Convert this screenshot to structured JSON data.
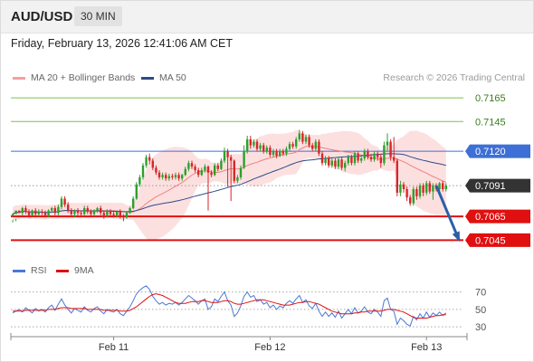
{
  "header": {
    "symbol": "AUD/USD",
    "timeframe": "30 MIN",
    "datetime": "Friday, February 13, 2026 12:41:06 AM CET",
    "copyright": "Research © 2026 Trading Central"
  },
  "legend": {
    "price": [
      {
        "label": "MA 20 + Bollinger Bands",
        "color": "#f4a0a0"
      },
      {
        "label": "MA 50",
        "color": "#2c4a8a"
      }
    ],
    "rsi": [
      {
        "label": "RSI",
        "color": "#4a78d6"
      },
      {
        "label": "9MA",
        "color": "#e01010"
      }
    ]
  },
  "colors": {
    "bull": "#2ca02c",
    "bear": "#d62728",
    "band_fill": "#fbd5d5",
    "ma20": "#f08080",
    "ma50": "#2c4a8a",
    "resistance": "#7cc24e",
    "pivot": "#3d6fd6",
    "support": "#e01010",
    "arrow": "#2a5fa8",
    "current_price_bg": "#333333"
  },
  "chart_data": [
    {
      "type": "candlestick",
      "title": "",
      "ylim": [
        7030,
        7175
      ],
      "x_ticks": [
        {
          "label": "Feb 11",
          "index": 31
        },
        {
          "label": "Feb 12",
          "index": 79
        },
        {
          "label": "Feb 13",
          "index": 127
        }
      ],
      "levels": [
        {
          "value": "0.7165",
          "type": "resistance"
        },
        {
          "value": "0.7145",
          "type": "resistance"
        },
        {
          "value": "0.7120",
          "type": "pivot"
        },
        {
          "value": "0.7091",
          "type": "current"
        },
        {
          "value": "0.7065",
          "type": "support"
        },
        {
          "value": "0.7045",
          "type": "support"
        }
      ],
      "forecast_arrow": {
        "from_index": 130,
        "from": 7091,
        "to_index": 137,
        "to": 7045
      },
      "candles": [
        [
          7065,
          7067,
          7062,
          7060
        ],
        [
          7067,
          7070,
          7063,
          7061
        ],
        [
          7070,
          7068,
          7066,
          7064
        ],
        [
          7068,
          7072,
          7073,
          7066
        ],
        [
          7072,
          7069,
          7074,
          7067
        ],
        [
          7069,
          7066,
          7071,
          7064
        ],
        [
          7066,
          7070,
          7071,
          7065
        ],
        [
          7070,
          7067,
          7072,
          7065
        ],
        [
          7067,
          7069,
          7071,
          7065
        ],
        [
          7069,
          7068,
          7071,
          7066
        ],
        [
          7068,
          7066,
          7070,
          7064
        ],
        [
          7066,
          7070,
          7071,
          7064
        ],
        [
          7070,
          7072,
          7073,
          7068
        ],
        [
          7072,
          7068,
          7074,
          7066
        ],
        [
          7068,
          7073,
          7075,
          7066
        ],
        [
          7073,
          7080,
          7082,
          7071
        ],
        [
          7080,
          7075,
          7082,
          7073
        ],
        [
          7075,
          7070,
          7077,
          7068
        ],
        [
          7070,
          7067,
          7072,
          7065
        ],
        [
          7067,
          7070,
          7071,
          7064
        ],
        [
          7070,
          7068,
          7072,
          7066
        ],
        [
          7068,
          7067,
          7070,
          7065
        ],
        [
          7067,
          7072,
          7074,
          7066
        ],
        [
          7072,
          7069,
          7074,
          7067
        ],
        [
          7069,
          7067,
          7071,
          7065
        ],
        [
          7067,
          7070,
          7071,
          7065
        ],
        [
          7070,
          7072,
          7073,
          7068
        ],
        [
          7072,
          7068,
          7074,
          7066
        ],
        [
          7068,
          7066,
          7070,
          7063
        ],
        [
          7066,
          7069,
          7071,
          7064
        ],
        [
          7069,
          7067,
          7071,
          7065
        ],
        [
          7067,
          7066,
          7069,
          7064
        ],
        [
          7066,
          7069,
          7070,
          7064
        ],
        [
          7069,
          7065,
          7071,
          7063
        ],
        [
          7065,
          7064,
          7067,
          7061
        ],
        [
          7064,
          7068,
          7069,
          7063
        ],
        [
          7068,
          7072,
          7073,
          7067
        ],
        [
          7072,
          7080,
          7082,
          7071
        ],
        [
          7080,
          7092,
          7094,
          7079
        ],
        [
          7092,
          7098,
          7100,
          7090
        ],
        [
          7098,
          7108,
          7110,
          7096
        ],
        [
          7108,
          7115,
          7117,
          7106
        ],
        [
          7115,
          7112,
          7118,
          7109
        ],
        [
          7112,
          7106,
          7114,
          7104
        ],
        [
          7106,
          7102,
          7108,
          7100
        ],
        [
          7102,
          7098,
          7104,
          7096
        ],
        [
          7098,
          7100,
          7102,
          7096
        ],
        [
          7100,
          7097,
          7102,
          7095
        ],
        [
          7097,
          7099,
          7101,
          7095
        ],
        [
          7099,
          7098,
          7101,
          7096
        ],
        [
          7098,
          7100,
          7102,
          7096
        ],
        [
          7100,
          7097,
          7102,
          7095
        ],
        [
          7097,
          7100,
          7101,
          7095
        ],
        [
          7100,
          7105,
          7107,
          7099
        ],
        [
          7105,
          7110,
          7112,
          7103
        ],
        [
          7110,
          7107,
          7112,
          7105
        ],
        [
          7107,
          7104,
          7109,
          7102
        ],
        [
          7104,
          7100,
          7106,
          7098
        ],
        [
          7100,
          7104,
          7106,
          7099
        ],
        [
          7104,
          7107,
          7109,
          7102
        ],
        [
          7107,
          7102,
          7108,
          7070
        ],
        [
          7102,
          7100,
          7104,
          7098
        ],
        [
          7100,
          7108,
          7110,
          7099
        ],
        [
          7108,
          7105,
          7110,
          7103
        ],
        [
          7105,
          7112,
          7114,
          7104
        ],
        [
          7112,
          7120,
          7123,
          7110
        ],
        [
          7120,
          7115,
          7122,
          7090
        ],
        [
          7115,
          7112,
          7117,
          7078
        ],
        [
          7112,
          7095,
          7113,
          7093
        ],
        [
          7095,
          7098,
          7100,
          7093
        ],
        [
          7098,
          7106,
          7108,
          7096
        ],
        [
          7106,
          7120,
          7125,
          7105
        ],
        [
          7120,
          7130,
          7133,
          7118
        ],
        [
          7130,
          7125,
          7133,
          7122
        ],
        [
          7125,
          7128,
          7130,
          7123
        ],
        [
          7128,
          7122,
          7130,
          7120
        ],
        [
          7122,
          7125,
          7127,
          7120
        ],
        [
          7125,
          7120,
          7127,
          7118
        ],
        [
          7120,
          7123,
          7125,
          7118
        ],
        [
          7123,
          7117,
          7125,
          7115
        ],
        [
          7117,
          7120,
          7122,
          7115
        ],
        [
          7120,
          7116,
          7122,
          7114
        ],
        [
          7116,
          7120,
          7122,
          7115
        ],
        [
          7120,
          7118,
          7122,
          7116
        ],
        [
          7118,
          7122,
          7124,
          7116
        ],
        [
          7122,
          7126,
          7128,
          7120
        ],
        [
          7126,
          7124,
          7128,
          7122
        ],
        [
          7124,
          7130,
          7132,
          7122
        ],
        [
          7130,
          7135,
          7138,
          7128
        ],
        [
          7135,
          7128,
          7137,
          7126
        ],
        [
          7128,
          7132,
          7134,
          7126
        ],
        [
          7132,
          7125,
          7134,
          7123
        ],
        [
          7125,
          7122,
          7127,
          7120
        ],
        [
          7122,
          7128,
          7130,
          7120
        ],
        [
          7128,
          7118,
          7130,
          7116
        ],
        [
          7118,
          7110,
          7120,
          7108
        ],
        [
          7110,
          7114,
          7116,
          7108
        ],
        [
          7114,
          7108,
          7116,
          7106
        ],
        [
          7108,
          7112,
          7114,
          7106
        ],
        [
          7112,
          7107,
          7114,
          7105
        ],
        [
          7107,
          7113,
          7115,
          7105
        ],
        [
          7113,
          7106,
          7115,
          7104
        ],
        [
          7106,
          7110,
          7112,
          7103
        ],
        [
          7110,
          7115,
          7117,
          7108
        ],
        [
          7115,
          7110,
          7117,
          7108
        ],
        [
          7110,
          7118,
          7120,
          7108
        ],
        [
          7118,
          7112,
          7120,
          7110
        ],
        [
          7112,
          7114,
          7117,
          7110
        ],
        [
          7114,
          7120,
          7122,
          7112
        ],
        [
          7120,
          7115,
          7122,
          7113
        ],
        [
          7115,
          7113,
          7118,
          7111
        ],
        [
          7113,
          7118,
          7120,
          7111
        ],
        [
          7118,
          7115,
          7120,
          7112
        ],
        [
          7115,
          7110,
          7118,
          7106
        ],
        [
          7110,
          7125,
          7128,
          7108
        ],
        [
          7125,
          7128,
          7135,
          7120
        ],
        [
          7128,
          7115,
          7130,
          7112
        ],
        [
          7115,
          7112,
          7132,
          7110
        ],
        [
          7112,
          7085,
          7114,
          7082
        ],
        [
          7085,
          7092,
          7095,
          7082
        ],
        [
          7092,
          7088,
          7094,
          7085
        ],
        [
          7088,
          7081,
          7090,
          7078
        ],
        [
          7081,
          7076,
          7083,
          7074
        ],
        [
          7076,
          7088,
          7090,
          7074
        ],
        [
          7088,
          7082,
          7090,
          7079
        ],
        [
          7082,
          7091,
          7093,
          7080
        ],
        [
          7091,
          7085,
          7093,
          7082
        ],
        [
          7085,
          7093,
          7095,
          7083
        ],
        [
          7093,
          7086,
          7095,
          7084
        ],
        [
          7086,
          7091,
          7093,
          7079
        ],
        [
          7091,
          7088,
          7093,
          7086
        ],
        [
          7088,
          7093,
          7094,
          7085
        ],
        [
          7093,
          7088,
          7095,
          7086
        ],
        [
          7088,
          7091,
          7093,
          7086
        ]
      ]
    },
    {
      "type": "line",
      "title": "RSI",
      "ylim": [
        25,
        80
      ],
      "y_ticks": [
        70,
        50,
        30
      ],
      "series": [
        {
          "name": "RSI",
          "values": [
            46,
            48,
            50,
            47,
            52,
            49,
            46,
            51,
            48,
            50,
            47,
            52,
            55,
            49,
            56,
            62,
            55,
            50,
            46,
            51,
            49,
            47,
            53,
            49,
            47,
            51,
            53,
            48,
            45,
            50,
            48,
            47,
            50,
            45,
            43,
            48,
            53,
            60,
            68,
            72,
            75,
            77,
            73,
            65,
            60,
            56,
            58,
            55,
            57,
            56,
            58,
            55,
            58,
            62,
            66,
            63,
            60,
            56,
            60,
            62,
            50,
            53,
            62,
            59,
            65,
            70,
            60,
            55,
            42,
            46,
            54,
            65,
            70,
            64,
            66,
            59,
            61,
            56,
            58,
            52,
            55,
            50,
            54,
            52,
            57,
            60,
            57,
            62,
            66,
            58,
            61,
            54,
            51,
            57,
            48,
            42,
            47,
            42,
            46,
            41,
            48,
            40,
            45,
            50,
            45,
            52,
            46,
            48,
            53,
            47,
            45,
            50,
            47,
            42,
            60,
            63,
            50,
            48,
            33,
            40,
            37,
            33,
            31,
            42,
            38,
            45,
            40,
            47,
            41,
            46,
            43,
            47,
            43,
            46
          ]
        },
        {
          "name": "9MA",
          "values": [
            48,
            48,
            48,
            48,
            49,
            49,
            49,
            49,
            49,
            49,
            49,
            50,
            50,
            50,
            51,
            52,
            52,
            52,
            51,
            51,
            51,
            51,
            51,
            50,
            50,
            50,
            50,
            50,
            49,
            49,
            49,
            49,
            49,
            48,
            48,
            48,
            49,
            51,
            53,
            56,
            59,
            62,
            65,
            67,
            68,
            67,
            66,
            64,
            62,
            60,
            58,
            57,
            57,
            57,
            58,
            59,
            59,
            59,
            60,
            60,
            59,
            58,
            58,
            58,
            59,
            60,
            60,
            59,
            57,
            56,
            56,
            57,
            58,
            59,
            60,
            61,
            61,
            61,
            60,
            59,
            58,
            57,
            56,
            55,
            55,
            55,
            56,
            57,
            58,
            58,
            59,
            59,
            58,
            57,
            56,
            54,
            52,
            50,
            48,
            47,
            46,
            45,
            45,
            45,
            45,
            46,
            46,
            47,
            47,
            48,
            48,
            48,
            48,
            48,
            49,
            50,
            50,
            50,
            49,
            48,
            47,
            45,
            43,
            41,
            40,
            40,
            40,
            40,
            41,
            42,
            43,
            43,
            44,
            44
          ]
        }
      ]
    }
  ]
}
